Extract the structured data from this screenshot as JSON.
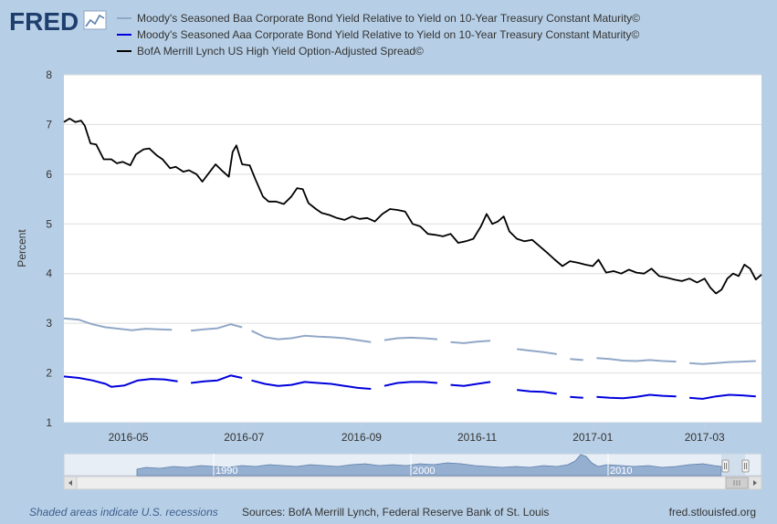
{
  "logo": {
    "text": "FRED",
    "icon": "line-chart-icon"
  },
  "chart_data": {
    "type": "line",
    "title": "",
    "xlabel": "",
    "ylabel": "Percent",
    "ylim": [
      1,
      8
    ],
    "yticks": [
      1,
      2,
      3,
      4,
      5,
      6,
      7,
      8
    ],
    "x_start": "2016-03-28",
    "x_end": "2017-03-31",
    "xticks": [
      {
        "date": "2016-05-01",
        "label": "2016-05"
      },
      {
        "date": "2016-07-01",
        "label": "2016-07"
      },
      {
        "date": "2016-09-01",
        "label": "2016-09"
      },
      {
        "date": "2016-11-01",
        "label": "2016-11"
      },
      {
        "date": "2017-01-01",
        "label": "2017-01"
      },
      {
        "date": "2017-03-01",
        "label": "2017-03"
      }
    ],
    "grid": true,
    "legend_position": "top",
    "series": [
      {
        "name": "Moody's Seasoned Baa Corporate Bond Yield Relative to Yield on 10-Year Treasury Constant Maturity©",
        "color": "#91a8c7",
        "points": [
          [
            "2016-03-28",
            3.1
          ],
          [
            "2016-04-05",
            3.07
          ],
          [
            "2016-04-12",
            2.98
          ],
          [
            "2016-04-19",
            2.92
          ],
          [
            "2016-04-26",
            2.89
          ],
          [
            "2016-05-03",
            2.86
          ],
          [
            "2016-05-10",
            2.89
          ],
          [
            "2016-05-17",
            2.88
          ],
          [
            "2016-05-24",
            2.87
          ],
          [
            "2016-05-31",
            null
          ],
          [
            "2016-06-03",
            2.85
          ],
          [
            "2016-06-10",
            2.88
          ],
          [
            "2016-06-17",
            2.9
          ],
          [
            "2016-06-24",
            2.98
          ],
          [
            "2016-06-30",
            2.92
          ],
          [
            "2016-07-02",
            null
          ],
          [
            "2016-07-05",
            2.85
          ],
          [
            "2016-07-12",
            2.72
          ],
          [
            "2016-07-19",
            2.68
          ],
          [
            "2016-07-26",
            2.7
          ],
          [
            "2016-08-02",
            2.75
          ],
          [
            "2016-08-09",
            2.73
          ],
          [
            "2016-08-16",
            2.72
          ],
          [
            "2016-08-23",
            2.7
          ],
          [
            "2016-08-30",
            2.66
          ],
          [
            "2016-09-06",
            2.62
          ],
          [
            "2016-09-10",
            null
          ],
          [
            "2016-09-13",
            2.66
          ],
          [
            "2016-09-20",
            2.7
          ],
          [
            "2016-09-27",
            2.71
          ],
          [
            "2016-10-04",
            2.7
          ],
          [
            "2016-10-11",
            2.68
          ],
          [
            "2016-10-15",
            null
          ],
          [
            "2016-10-18",
            2.62
          ],
          [
            "2016-10-25",
            2.6
          ],
          [
            "2016-11-01",
            2.63
          ],
          [
            "2016-11-08",
            2.65
          ],
          [
            "2016-11-10",
            null
          ],
          [
            "2016-11-15",
            2.52
          ],
          [
            "2016-11-18",
            null
          ],
          [
            "2016-11-22",
            2.48
          ],
          [
            "2016-11-29",
            2.45
          ],
          [
            "2016-12-06",
            2.42
          ],
          [
            "2016-12-13",
            2.38
          ],
          [
            "2016-12-16",
            null
          ],
          [
            "2016-12-20",
            2.28
          ],
          [
            "2016-12-27",
            2.26
          ],
          [
            "2016-12-30",
            null
          ],
          [
            "2017-01-03",
            2.3
          ],
          [
            "2017-01-10",
            2.28
          ],
          [
            "2017-01-17",
            2.25
          ],
          [
            "2017-01-24",
            2.24
          ],
          [
            "2017-01-31",
            2.26
          ],
          [
            "2017-02-07",
            2.24
          ],
          [
            "2017-02-14",
            2.23
          ],
          [
            "2017-02-17",
            null
          ],
          [
            "2017-02-21",
            2.2
          ],
          [
            "2017-02-28",
            2.18
          ],
          [
            "2017-03-07",
            2.2
          ],
          [
            "2017-03-14",
            2.22
          ],
          [
            "2017-03-21",
            2.23
          ],
          [
            "2017-03-28",
            2.24
          ]
        ]
      },
      {
        "name": "Moody's Seasoned Aaa Corporate Bond Yield Relative to Yield on 10-Year Treasury Constant Maturity©",
        "color": "#0000dd",
        "points": [
          [
            "2016-03-28",
            1.93
          ],
          [
            "2016-04-05",
            1.9
          ],
          [
            "2016-04-12",
            1.85
          ],
          [
            "2016-04-19",
            1.78
          ],
          [
            "2016-04-22",
            1.72
          ],
          [
            "2016-04-29",
            1.75
          ],
          [
            "2016-05-06",
            1.85
          ],
          [
            "2016-05-13",
            1.88
          ],
          [
            "2016-05-20",
            1.87
          ],
          [
            "2016-05-27",
            1.83
          ],
          [
            "2016-05-31",
            null
          ],
          [
            "2016-06-03",
            1.8
          ],
          [
            "2016-06-10",
            1.83
          ],
          [
            "2016-06-17",
            1.85
          ],
          [
            "2016-06-24",
            1.95
          ],
          [
            "2016-06-30",
            1.9
          ],
          [
            "2016-07-02",
            null
          ],
          [
            "2016-07-05",
            1.85
          ],
          [
            "2016-07-12",
            1.78
          ],
          [
            "2016-07-19",
            1.74
          ],
          [
            "2016-07-26",
            1.76
          ],
          [
            "2016-08-02",
            1.82
          ],
          [
            "2016-08-09",
            1.8
          ],
          [
            "2016-08-16",
            1.78
          ],
          [
            "2016-08-23",
            1.74
          ],
          [
            "2016-08-30",
            1.7
          ],
          [
            "2016-09-06",
            1.68
          ],
          [
            "2016-09-10",
            null
          ],
          [
            "2016-09-13",
            1.74
          ],
          [
            "2016-09-20",
            1.8
          ],
          [
            "2016-09-27",
            1.82
          ],
          [
            "2016-10-04",
            1.82
          ],
          [
            "2016-10-11",
            1.8
          ],
          [
            "2016-10-15",
            null
          ],
          [
            "2016-10-18",
            1.76
          ],
          [
            "2016-10-25",
            1.74
          ],
          [
            "2016-11-01",
            1.78
          ],
          [
            "2016-11-08",
            1.82
          ],
          [
            "2016-11-10",
            null
          ],
          [
            "2016-11-15",
            1.7
          ],
          [
            "2016-11-18",
            null
          ],
          [
            "2016-11-22",
            1.66
          ],
          [
            "2016-11-29",
            1.63
          ],
          [
            "2016-12-06",
            1.62
          ],
          [
            "2016-12-13",
            1.58
          ],
          [
            "2016-12-16",
            null
          ],
          [
            "2016-12-20",
            1.52
          ],
          [
            "2016-12-27",
            1.5
          ],
          [
            "2016-12-30",
            null
          ],
          [
            "2017-01-03",
            1.52
          ],
          [
            "2017-01-10",
            1.5
          ],
          [
            "2017-01-17",
            1.49
          ],
          [
            "2017-01-24",
            1.52
          ],
          [
            "2017-01-31",
            1.56
          ],
          [
            "2017-02-07",
            1.54
          ],
          [
            "2017-02-14",
            1.53
          ],
          [
            "2017-02-17",
            null
          ],
          [
            "2017-02-21",
            1.5
          ],
          [
            "2017-02-28",
            1.48
          ],
          [
            "2017-03-07",
            1.53
          ],
          [
            "2017-03-14",
            1.56
          ],
          [
            "2017-03-21",
            1.55
          ],
          [
            "2017-03-28",
            1.53
          ]
        ]
      },
      {
        "name": "BofA Merrill Lynch US High Yield Option-Adjusted Spread©",
        "color": "#000000",
        "points": [
          [
            "2016-03-28",
            7.05
          ],
          [
            "2016-03-31",
            7.12
          ],
          [
            "2016-04-03",
            7.05
          ],
          [
            "2016-04-06",
            7.08
          ],
          [
            "2016-04-08",
            6.98
          ],
          [
            "2016-04-11",
            6.62
          ],
          [
            "2016-04-14",
            6.6
          ],
          [
            "2016-04-18",
            6.3
          ],
          [
            "2016-04-22",
            6.3
          ],
          [
            "2016-04-25",
            6.22
          ],
          [
            "2016-04-28",
            6.25
          ],
          [
            "2016-05-02",
            6.18
          ],
          [
            "2016-05-05",
            6.4
          ],
          [
            "2016-05-09",
            6.5
          ],
          [
            "2016-05-12",
            6.52
          ],
          [
            "2016-05-16",
            6.38
          ],
          [
            "2016-05-19",
            6.3
          ],
          [
            "2016-05-23",
            6.12
          ],
          [
            "2016-05-26",
            6.15
          ],
          [
            "2016-05-30",
            6.05
          ],
          [
            "2016-06-02",
            6.08
          ],
          [
            "2016-06-06",
            6.0
          ],
          [
            "2016-06-09",
            5.85
          ],
          [
            "2016-06-13",
            6.05
          ],
          [
            "2016-06-16",
            6.2
          ],
          [
            "2016-06-20",
            6.05
          ],
          [
            "2016-06-23",
            5.95
          ],
          [
            "2016-06-25",
            6.45
          ],
          [
            "2016-06-27",
            6.58
          ],
          [
            "2016-06-30",
            6.2
          ],
          [
            "2016-07-04",
            6.18
          ],
          [
            "2016-07-07",
            5.9
          ],
          [
            "2016-07-11",
            5.55
          ],
          [
            "2016-07-14",
            5.45
          ],
          [
            "2016-07-18",
            5.45
          ],
          [
            "2016-07-22",
            5.4
          ],
          [
            "2016-07-26",
            5.55
          ],
          [
            "2016-07-29",
            5.72
          ],
          [
            "2016-08-01",
            5.7
          ],
          [
            "2016-08-04",
            5.42
          ],
          [
            "2016-08-08",
            5.3
          ],
          [
            "2016-08-11",
            5.22
          ],
          [
            "2016-08-15",
            5.18
          ],
          [
            "2016-08-19",
            5.12
          ],
          [
            "2016-08-23",
            5.08
          ],
          [
            "2016-08-27",
            5.15
          ],
          [
            "2016-08-31",
            5.1
          ],
          [
            "2016-09-04",
            5.12
          ],
          [
            "2016-09-08",
            5.05
          ],
          [
            "2016-09-12",
            5.2
          ],
          [
            "2016-09-16",
            5.3
          ],
          [
            "2016-09-20",
            5.28
          ],
          [
            "2016-09-24",
            5.25
          ],
          [
            "2016-09-28",
            5.0
          ],
          [
            "2016-10-02",
            4.95
          ],
          [
            "2016-10-06",
            4.8
          ],
          [
            "2016-10-10",
            4.78
          ],
          [
            "2016-10-14",
            4.75
          ],
          [
            "2016-10-18",
            4.8
          ],
          [
            "2016-10-22",
            4.62
          ],
          [
            "2016-10-26",
            4.65
          ],
          [
            "2016-10-30",
            4.7
          ],
          [
            "2016-11-03",
            4.95
          ],
          [
            "2016-11-06",
            5.2
          ],
          [
            "2016-11-09",
            5.0
          ],
          [
            "2016-11-12",
            5.05
          ],
          [
            "2016-11-15",
            5.15
          ],
          [
            "2016-11-18",
            4.85
          ],
          [
            "2016-11-22",
            4.7
          ],
          [
            "2016-11-26",
            4.65
          ],
          [
            "2016-11-30",
            4.68
          ],
          [
            "2016-12-04",
            4.55
          ],
          [
            "2016-12-08",
            4.42
          ],
          [
            "2016-12-12",
            4.28
          ],
          [
            "2016-12-16",
            4.15
          ],
          [
            "2016-12-20",
            4.25
          ],
          [
            "2016-12-24",
            4.22
          ],
          [
            "2016-12-28",
            4.18
          ],
          [
            "2017-01-01",
            4.15
          ],
          [
            "2017-01-04",
            4.28
          ],
          [
            "2017-01-08",
            4.02
          ],
          [
            "2017-01-12",
            4.05
          ],
          [
            "2017-01-16",
            4.0
          ],
          [
            "2017-01-20",
            4.08
          ],
          [
            "2017-01-24",
            4.02
          ],
          [
            "2017-01-28",
            4.0
          ],
          [
            "2017-02-01",
            4.1
          ],
          [
            "2017-02-05",
            3.95
          ],
          [
            "2017-02-09",
            3.92
          ],
          [
            "2017-02-13",
            3.88
          ],
          [
            "2017-02-17",
            3.85
          ],
          [
            "2017-02-21",
            3.9
          ],
          [
            "2017-02-25",
            3.82
          ],
          [
            "2017-03-01",
            3.9
          ],
          [
            "2017-03-04",
            3.72
          ],
          [
            "2017-03-07",
            3.6
          ],
          [
            "2017-03-10",
            3.68
          ],
          [
            "2017-03-13",
            3.9
          ],
          [
            "2017-03-16",
            4.0
          ],
          [
            "2017-03-19",
            3.95
          ],
          [
            "2017-03-22",
            4.18
          ],
          [
            "2017-03-25",
            4.1
          ],
          [
            "2017-03-28",
            3.88
          ],
          [
            "2017-03-31",
            3.98
          ]
        ]
      }
    ]
  },
  "navigator": {
    "labels": [
      "1990",
      "2000",
      "2010"
    ],
    "left_arrow_icon": "chevron-left-icon",
    "right_arrow_icon": "chevron-right-icon",
    "scroll_grip_icon": "grip-icon"
  },
  "footer": {
    "recession_note": "Shaded areas indicate U.S. recessions",
    "sources": "Sources: BofA Merrill Lynch, Federal Reserve Bank of St. Louis",
    "site": "fred.stlouisfed.org"
  }
}
